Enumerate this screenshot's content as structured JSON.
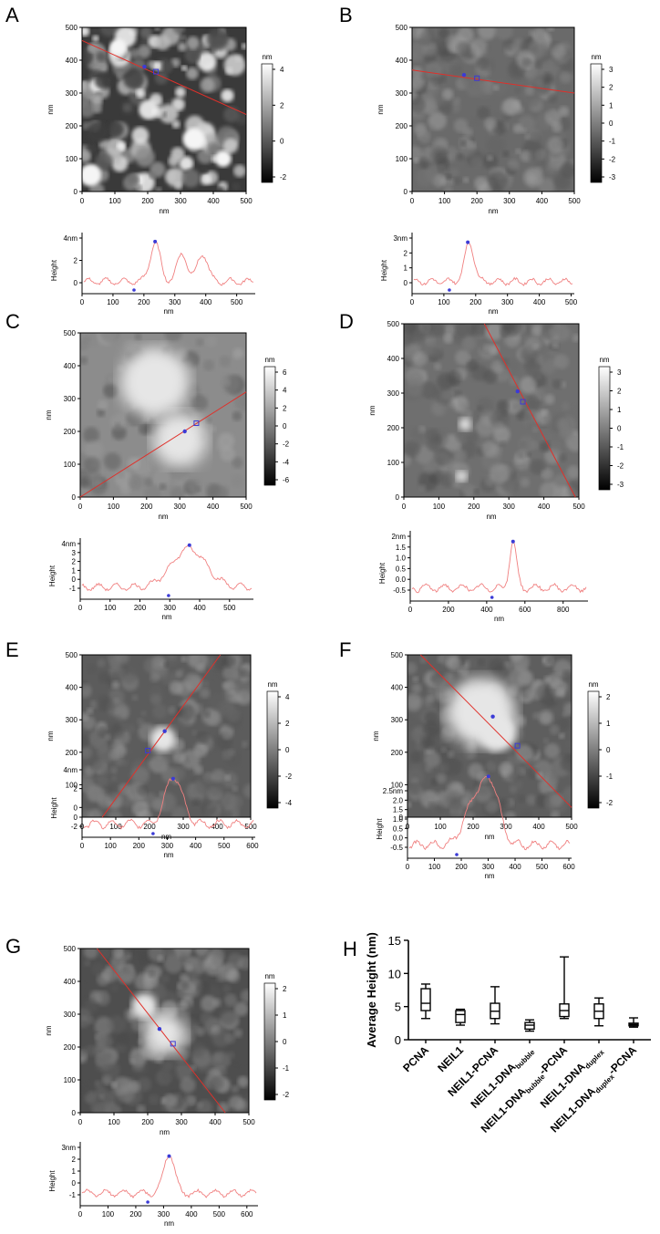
{
  "panels": [
    {
      "letter": "A",
      "img": {
        "x": [
          0,
          500,
          100
        ],
        "y": [
          0,
          500,
          100
        ],
        "xlabel": "nm",
        "ylabel": "nm"
      },
      "scale": {
        "unit": "nm",
        "ticks": [
          "4",
          "2",
          "0",
          "-2"
        ]
      },
      "line": {
        "x0": 0,
        "y0": 460,
        "x1": 500,
        "y1": 235,
        "m1": [
          190,
          380
        ],
        "m2": [
          225,
          365
        ]
      },
      "profile": {
        "xmax": 560,
        "xticks": [
          0,
          100,
          200,
          300,
          400,
          500
        ],
        "ytick_labels": [
          "4nm",
          "2",
          "0"
        ],
        "ylabel": "Height",
        "xlabel": "nm"
      }
    },
    {
      "letter": "B",
      "img": {
        "x": [
          0,
          500,
          100
        ],
        "y": [
          0,
          500,
          100
        ],
        "xlabel": "nm",
        "ylabel": "nm"
      },
      "scale": {
        "unit": "nm",
        "ticks": [
          "3",
          "2",
          "1",
          "0",
          "-1",
          "-2",
          "-3"
        ]
      },
      "line": {
        "x0": 0,
        "y0": 370,
        "x1": 500,
        "y1": 300,
        "m1": [
          160,
          355
        ],
        "m2": [
          200,
          345
        ]
      },
      "profile": {
        "xmax": 510,
        "xticks": [
          0,
          100,
          200,
          300,
          400,
          500
        ],
        "ytick_labels": [
          "3nm",
          "2",
          "1",
          "0"
        ],
        "ylabel": "Height",
        "xlabel": "nm"
      }
    },
    {
      "letter": "C",
      "img": {
        "x": [
          0,
          500,
          100
        ],
        "y": [
          0,
          500,
          100
        ],
        "xlabel": "nm",
        "ylabel": "nm"
      },
      "scale": {
        "unit": "nm",
        "ticks": [
          "6",
          "4",
          "2",
          "0",
          "-2",
          "-4",
          "-6"
        ]
      },
      "line": {
        "x0": 0,
        "y0": 0,
        "x1": 500,
        "y1": 320,
        "m1": [
          315,
          200
        ],
        "m2": [
          350,
          225
        ]
      },
      "profile": {
        "xmax": 580,
        "xticks": [
          0,
          100,
          200,
          300,
          400,
          500
        ],
        "ytick_labels": [
          "4nm",
          "3",
          "2",
          "1",
          "0",
          "-1"
        ],
        "ylabel": "Height",
        "xlabel": "nm"
      }
    },
    {
      "letter": "D",
      "img": {
        "x": [
          0,
          500,
          100
        ],
        "y": [
          0,
          500,
          100
        ],
        "xlabel": "nm",
        "ylabel": "nm"
      },
      "scale": {
        "unit": "nm",
        "ticks": [
          "3",
          "2",
          "1",
          "0",
          "-1",
          "-2",
          "-3"
        ]
      },
      "line": {
        "x0": 230,
        "y0": 500,
        "x1": 490,
        "y1": 0,
        "m1": [
          325,
          305
        ],
        "m2": [
          340,
          275
        ]
      },
      "profile": {
        "xmax": 930,
        "xticks": [
          0,
          200,
          400,
          600,
          800
        ],
        "ytick_labels": [
          "2nm",
          "1.5",
          "1.0",
          "0.5",
          "0.0",
          "-0.5"
        ],
        "ylabel": "Height",
        "xlabel": "nm"
      }
    },
    {
      "letter": "E",
      "img": {
        "x": [
          0,
          500,
          100
        ],
        "y": [
          0,
          500,
          100
        ],
        "xlabel": "nm",
        "ylabel": "nm"
      },
      "scale": {
        "unit": "nm",
        "ticks": [
          "4",
          "2",
          "0",
          "-2",
          "-4"
        ]
      },
      "line": {
        "x0": 60,
        "y0": 0,
        "x1": 410,
        "y1": 500,
        "m1": [
          245,
          265
        ],
        "m2": [
          195,
          205
        ]
      },
      "profile": {
        "xmax": 610,
        "xticks": [
          0,
          100,
          200,
          300,
          400,
          500,
          600
        ],
        "ytick_labels": [
          "4nm",
          "2",
          "0",
          "-2"
        ],
        "ylabel": "Height",
        "xlabel": "nm"
      }
    },
    {
      "letter": "F",
      "img": {
        "x": [
          0,
          500,
          100
        ],
        "y": [
          0,
          500,
          100
        ],
        "xlabel": "nm",
        "ylabel": "nm"
      },
      "scale": {
        "unit": "nm",
        "ticks": [
          "2",
          "1",
          "0",
          "-1",
          "-2"
        ]
      },
      "line": {
        "x0": 40,
        "y0": 500,
        "x1": 500,
        "y1": 30,
        "m1": [
          260,
          310
        ],
        "m2": [
          335,
          220
        ]
      },
      "profile": {
        "xmax": 610,
        "xticks": [
          0,
          100,
          200,
          300,
          400,
          500,
          600
        ],
        "ytick_labels": [
          "2.5nm",
          "2.0",
          "1.5",
          "1.0",
          "0.5",
          "0.0",
          "-0.5"
        ],
        "ylabel": "Height",
        "xlabel": "nm"
      }
    },
    {
      "letter": "G",
      "img": {
        "x": [
          0,
          500,
          100
        ],
        "y": [
          0,
          500,
          100
        ],
        "xlabel": "nm",
        "ylabel": "nm"
      },
      "scale": {
        "unit": "nm",
        "ticks": [
          "2",
          "1",
          "0",
          "-1",
          "-2"
        ]
      },
      "line": {
        "x0": 50,
        "y0": 500,
        "x1": 430,
        "y1": 0,
        "m1": [
          235,
          255
        ],
        "m2": [
          275,
          210
        ]
      },
      "profile": {
        "xmax": 640,
        "xticks": [
          0,
          100,
          200,
          300,
          400,
          500,
          600
        ],
        "ytick_labels": [
          "3nm",
          "2",
          "1",
          "0",
          "-1"
        ],
        "ylabel": "Height",
        "xlabel": "nm"
      }
    }
  ],
  "panel_h_letter": "H",
  "chart_data": {
    "type": "box",
    "ylabel": "Average Height (nm)",
    "ylim": [
      0,
      15
    ],
    "yticks": [
      0,
      5,
      10,
      15
    ],
    "categories": [
      {
        "base": "PCNA",
        "sub": "",
        "tail": ""
      },
      {
        "base": "NEIL1",
        "sub": "",
        "tail": ""
      },
      {
        "base": "NEIL1-PCNA",
        "sub": "",
        "tail": ""
      },
      {
        "base": "NEIL1-DNA",
        "sub": "bubble",
        "tail": ""
      },
      {
        "base": "NEIL1-DNA",
        "sub": "bubble",
        "tail": "-PCNA"
      },
      {
        "base": "NEIL1-DNA",
        "sub": "duplex",
        "tail": ""
      },
      {
        "base": "NEIL1-DNA",
        "sub": "duplex",
        "tail": "-PCNA"
      }
    ],
    "boxes": [
      {
        "min": 3.2,
        "q1": 4.4,
        "median": 5.5,
        "q3": 7.7,
        "max": 8.4
      },
      {
        "min": 2.2,
        "q1": 2.6,
        "median": 3.8,
        "q3": 4.4,
        "max": 4.6
      },
      {
        "min": 2.4,
        "q1": 3.2,
        "median": 4.3,
        "q3": 5.5,
        "max": 8.0
      },
      {
        "min": 1.3,
        "q1": 1.6,
        "median": 2.2,
        "q3": 2.6,
        "max": 3.0
      },
      {
        "min": 3.2,
        "q1": 3.5,
        "median": 4.4,
        "q3": 5.4,
        "max": 12.5
      },
      {
        "min": 2.1,
        "q1": 3.2,
        "median": 4.3,
        "q3": 5.4,
        "max": 6.3
      },
      {
        "min": 1.9,
        "q1": 2.1,
        "median": 2.3,
        "q3": 2.5,
        "max": 3.3
      }
    ]
  }
}
